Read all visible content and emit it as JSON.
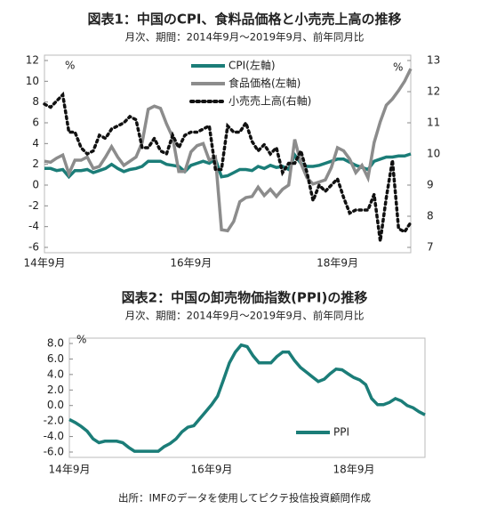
{
  "chart_data": [
    {
      "type": "line",
      "title": "図表1：中国のCPI、食料品価格と小売売上高の推移",
      "subtitle": "月次、期間：2014年9月～2019年9月、前年同月比",
      "ylabel": "%",
      "y2label": "%",
      "legend": "top",
      "categories": [
        "14年9月",
        null,
        null,
        null,
        null,
        null,
        null,
        null,
        null,
        null,
        null,
        null,
        null,
        null,
        null,
        null,
        null,
        null,
        null,
        null,
        null,
        null,
        null,
        null,
        "16年9月",
        null,
        null,
        null,
        null,
        null,
        null,
        null,
        null,
        null,
        null,
        null,
        null,
        null,
        null,
        null,
        null,
        null,
        null,
        null,
        null,
        null,
        null,
        null,
        "18年9月",
        null,
        null,
        null,
        null,
        null,
        null,
        null,
        null,
        null,
        null,
        null,
        null
      ],
      "ylim": [
        -6,
        12
      ],
      "yticks": [
        -6,
        -4,
        -2,
        0,
        2,
        4,
        6,
        8,
        10,
        12
      ],
      "y2lim": [
        7,
        13
      ],
      "y2ticks": [
        7,
        8,
        9,
        10,
        11,
        12,
        13
      ],
      "series": [
        {
          "name": "CPI(左軸)",
          "color": "#1b7d78",
          "style": "solid",
          "values": [
            1.6,
            1.6,
            1.4,
            1.5,
            0.8,
            1.4,
            1.4,
            1.5,
            1.2,
            1.4,
            1.6,
            2.0,
            1.6,
            1.3,
            1.5,
            1.6,
            1.8,
            2.3,
            2.3,
            2.3,
            2.0,
            1.9,
            1.8,
            1.3,
            1.9,
            2.1,
            2.3,
            2.1,
            2.5,
            0.8,
            0.9,
            1.2,
            1.5,
            1.5,
            1.4,
            1.8,
            1.6,
            1.9,
            1.7,
            1.8,
            1.5,
            2.9,
            2.1,
            1.8,
            1.8,
            1.9,
            2.1,
            2.3,
            2.5,
            2.5,
            2.2,
            1.9,
            1.7,
            1.5,
            2.3,
            2.5,
            2.7,
            2.7,
            2.8,
            2.8,
            3.0
          ]
        },
        {
          "name": "食品価格(左軸)",
          "color": "#8c8c8c",
          "style": "solid",
          "values": [
            2.3,
            2.2,
            2.6,
            2.9,
            1.1,
            2.4,
            2.4,
            2.7,
            1.6,
            1.8,
            2.7,
            3.7,
            2.7,
            1.9,
            2.3,
            2.7,
            4.1,
            7.3,
            7.6,
            7.4,
            5.9,
            4.6,
            1.3,
            1.3,
            3.2,
            3.8,
            4.0,
            2.4,
            2.7,
            -4.3,
            -4.4,
            -3.5,
            -1.6,
            -1.2,
            -1.1,
            -0.2,
            -1.0,
            -0.4,
            -1.1,
            -0.4,
            0.0,
            4.4,
            2.1,
            0.7,
            0.1,
            0.3,
            0.5,
            1.7,
            3.6,
            3.3,
            2.5,
            1.2,
            1.9,
            0.7,
            4.1,
            6.1,
            7.7,
            8.3,
            9.1,
            10.0,
            11.2
          ]
        },
        {
          "name": "小売売上高(右軸)",
          "color": "#111111",
          "style": "dotted",
          "axis": "y2",
          "values": [
            11.6,
            11.5,
            11.7,
            11.9,
            10.7,
            10.7,
            10.2,
            10.0,
            10.1,
            10.6,
            10.5,
            10.8,
            10.9,
            11.0,
            11.2,
            11.1,
            10.2,
            10.2,
            10.5,
            10.1,
            10.0,
            10.6,
            10.2,
            10.6,
            10.7,
            10.7,
            10.8,
            10.9,
            9.5,
            9.5,
            10.9,
            10.7,
            10.7,
            11.0,
            10.4,
            10.1,
            10.3,
            10.0,
            10.2,
            9.4,
            9.7,
            9.7,
            10.1,
            9.4,
            8.5,
            9.0,
            8.8,
            9.0,
            9.2,
            8.6,
            8.1,
            8.2,
            8.2,
            8.2,
            8.7,
            7.2,
            8.6,
            9.8,
            7.6,
            7.5,
            7.8
          ]
        }
      ]
    },
    {
      "type": "line",
      "title": "図表2：中国の卸売物価指数(PPI)の推移",
      "subtitle": "月次、期間：2014年9月～2019年9月、前年同月比",
      "ylabel": "%",
      "legend": "lower right",
      "categories": [
        "14年9月",
        null,
        null,
        null,
        null,
        null,
        null,
        null,
        null,
        null,
        null,
        null,
        null,
        null,
        null,
        null,
        null,
        null,
        null,
        null,
        null,
        null,
        null,
        null,
        "16年9月",
        null,
        null,
        null,
        null,
        null,
        null,
        null,
        null,
        null,
        null,
        null,
        null,
        null,
        null,
        null,
        null,
        null,
        null,
        null,
        null,
        null,
        null,
        null,
        "18年9月",
        null,
        null,
        null,
        null,
        null,
        null,
        null,
        null,
        null,
        null,
        null,
        null
      ],
      "ylim": [
        -6,
        8
      ],
      "yticks": [
        {
          "value": -6,
          "label": "-6.0"
        },
        {
          "value": -4,
          "label": "-4.0"
        },
        {
          "value": -2,
          "label": "-2.0"
        },
        {
          "value": 0,
          "label": "0.0"
        },
        {
          "value": 2,
          "label": "2.0"
        },
        {
          "value": 4,
          "label": "4.0"
        },
        {
          "value": 6,
          "label": "6.0"
        },
        {
          "value": 8,
          "label": "8.0"
        }
      ],
      "series": [
        {
          "name": "PPI",
          "color": "#1b7d78",
          "style": "solid",
          "values": [
            -1.8,
            -2.2,
            -2.7,
            -3.3,
            -4.3,
            -4.8,
            -4.6,
            -4.6,
            -4.6,
            -4.8,
            -5.4,
            -5.9,
            -5.9,
            -5.9,
            -5.9,
            -5.9,
            -5.3,
            -4.9,
            -4.3,
            -3.4,
            -2.8,
            -2.6,
            -1.7,
            -0.8,
            0.1,
            1.2,
            3.3,
            5.5,
            6.9,
            7.8,
            7.6,
            6.4,
            5.5,
            5.5,
            5.5,
            6.3,
            6.9,
            6.9,
            5.8,
            4.9,
            4.3,
            3.7,
            3.1,
            3.4,
            4.1,
            4.7,
            4.6,
            4.1,
            3.6,
            3.3,
            2.7,
            0.9,
            0.1,
            0.1,
            0.4,
            0.9,
            0.6,
            0.0,
            -0.3,
            -0.8,
            -1.2
          ]
        }
      ]
    }
  ],
  "footnote": "出所：IMFのデータを使用してピクテ投信投資顧問作成"
}
